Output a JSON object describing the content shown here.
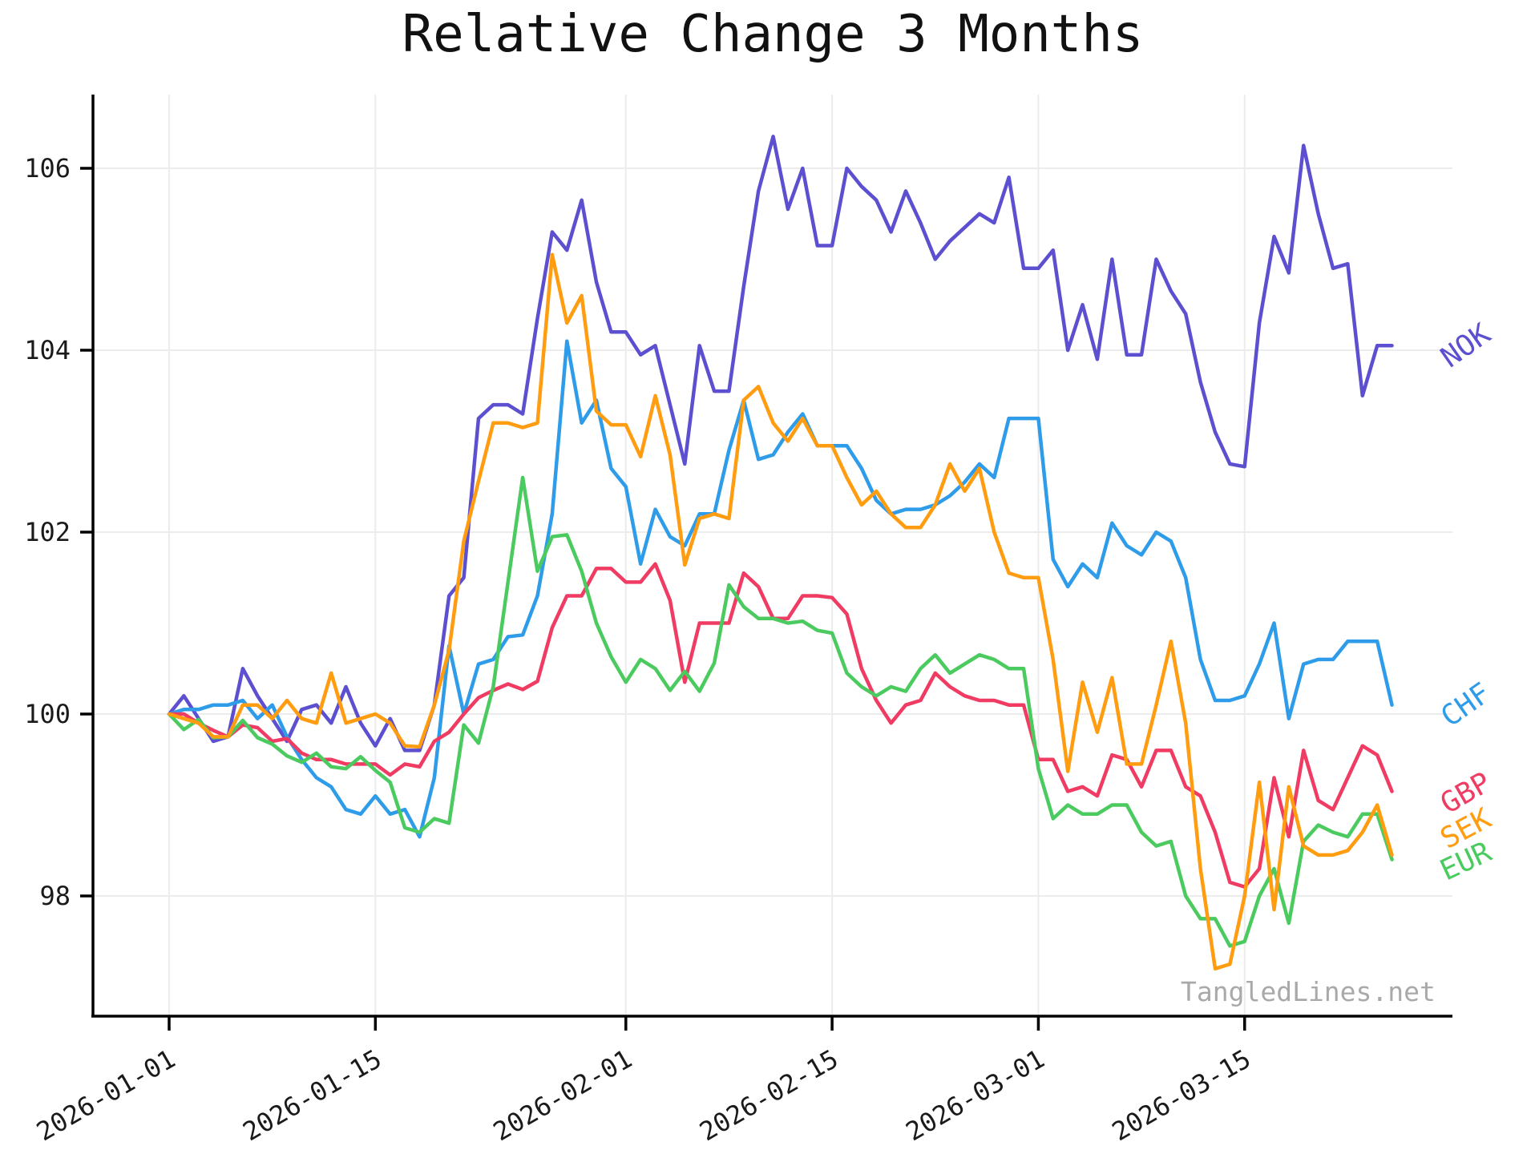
{
  "chart_data": {
    "type": "line",
    "title": "Relative Change 3 Months",
    "watermark": "TangledLines.net",
    "x_start_date": "2026-01-01",
    "x_step_days": 1,
    "grid": true,
    "legend_position": "right-edge-inline-labels",
    "y_axis": {
      "ticks": [
        98,
        100,
        102,
        104,
        106
      ],
      "ylim": [
        96.7,
        106.8
      ]
    },
    "x_axis": {
      "ticks": [
        {
          "day": 0,
          "label": "2026-01-01"
        },
        {
          "day": 14,
          "label": "2026-01-15"
        },
        {
          "day": 31,
          "label": "2026-02-01"
        },
        {
          "day": 45,
          "label": "2026-02-15"
        },
        {
          "day": 59,
          "label": "2026-03-01"
        },
        {
          "day": 73,
          "label": "2026-03-15"
        }
      ]
    },
    "series": [
      {
        "name": "NOK",
        "color": "#5c50d0",
        "values": [
          100.0,
          100.2,
          99.95,
          99.7,
          99.75,
          100.5,
          100.2,
          99.95,
          99.7,
          100.05,
          100.1,
          99.9,
          100.3,
          99.9,
          99.65,
          99.95,
          99.6,
          99.6,
          100.1,
          101.3,
          101.5,
          103.25,
          103.4,
          103.4,
          103.3,
          104.35,
          105.3,
          105.1,
          105.65,
          104.75,
          104.2,
          104.2,
          103.95,
          104.05,
          103.4,
          102.75,
          104.05,
          103.55,
          103.55,
          104.7,
          105.75,
          106.35,
          105.55,
          106.0,
          105.15,
          105.15,
          106.0,
          105.8,
          105.65,
          105.3,
          105.75,
          105.4,
          105.0,
          105.2,
          105.35,
          105.5,
          105.4,
          105.9,
          104.9,
          104.9,
          105.1,
          104.0,
          104.5,
          103.9,
          105.0,
          103.95,
          103.95,
          105.0,
          104.65,
          104.4,
          103.65,
          103.1,
          102.75,
          102.72,
          104.3,
          105.25,
          104.85,
          106.25,
          105.5,
          104.9,
          104.95,
          103.5,
          104.05,
          104.05
        ]
      },
      {
        "name": "CHF",
        "color": "#2e9ce9",
        "values": [
          100.0,
          100.05,
          100.05,
          100.1,
          100.1,
          100.15,
          99.95,
          100.1,
          99.75,
          99.5,
          99.3,
          99.2,
          98.95,
          98.9,
          99.1,
          98.9,
          98.95,
          98.65,
          99.3,
          100.75,
          100.0,
          100.55,
          100.6,
          100.85,
          100.87,
          101.3,
          102.2,
          104.1,
          103.2,
          103.45,
          102.7,
          102.5,
          101.65,
          102.25,
          101.95,
          101.85,
          102.2,
          102.2,
          102.9,
          103.45,
          102.8,
          102.85,
          103.1,
          103.3,
          102.95,
          102.95,
          102.95,
          102.7,
          102.35,
          102.2,
          102.25,
          102.25,
          102.3,
          102.4,
          102.55,
          102.75,
          102.6,
          103.25,
          103.25,
          103.25,
          101.7,
          101.4,
          101.65,
          101.5,
          102.1,
          101.85,
          101.75,
          102.0,
          101.9,
          101.5,
          100.6,
          100.15,
          100.15,
          100.2,
          100.55,
          101.0,
          99.95,
          100.55,
          100.6,
          100.6,
          100.8,
          100.8,
          100.8,
          100.1
        ]
      },
      {
        "name": "GBP",
        "color": "#f03b63",
        "values": [
          100.0,
          100.0,
          99.9,
          99.82,
          99.75,
          99.88,
          99.85,
          99.7,
          99.73,
          99.57,
          99.5,
          99.5,
          99.45,
          99.45,
          99.45,
          99.33,
          99.45,
          99.42,
          99.7,
          99.8,
          100.0,
          100.18,
          100.26,
          100.33,
          100.27,
          100.36,
          100.95,
          101.3,
          101.3,
          101.6,
          101.6,
          101.45,
          101.45,
          101.65,
          101.25,
          100.35,
          101.0,
          101.0,
          101.0,
          101.55,
          101.4,
          101.05,
          101.05,
          101.3,
          101.3,
          101.28,
          101.1,
          100.5,
          100.15,
          99.9,
          100.1,
          100.15,
          100.45,
          100.3,
          100.2,
          100.15,
          100.15,
          100.1,
          100.1,
          99.5,
          99.5,
          99.15,
          99.2,
          99.1,
          99.55,
          99.5,
          99.2,
          99.6,
          99.6,
          99.2,
          99.1,
          98.7,
          98.15,
          98.1,
          98.3,
          99.3,
          98.65,
          99.6,
          99.05,
          98.95,
          99.3,
          99.65,
          99.55,
          99.15
        ]
      },
      {
        "name": "EUR",
        "color": "#4bcb5f",
        "values": [
          100.0,
          99.83,
          99.94,
          99.74,
          99.75,
          99.93,
          99.74,
          99.67,
          99.54,
          99.47,
          99.57,
          99.42,
          99.4,
          99.53,
          99.38,
          99.25,
          98.75,
          98.7,
          98.85,
          98.8,
          99.88,
          99.68,
          100.3,
          101.45,
          102.6,
          101.57,
          101.95,
          101.97,
          101.57,
          101.0,
          100.63,
          100.35,
          100.6,
          100.5,
          100.26,
          100.47,
          100.25,
          100.56,
          101.42,
          101.18,
          101.05,
          101.05,
          101.0,
          101.02,
          100.92,
          100.89,
          100.45,
          100.3,
          100.2,
          100.3,
          100.25,
          100.5,
          100.65,
          100.45,
          100.55,
          100.65,
          100.6,
          100.5,
          100.5,
          99.4,
          98.85,
          99.0,
          98.9,
          98.9,
          99.0,
          99.0,
          98.7,
          98.55,
          98.6,
          98.0,
          97.75,
          97.75,
          97.45,
          97.5,
          98.0,
          98.3,
          97.7,
          98.6,
          98.78,
          98.7,
          98.65,
          98.9,
          98.9,
          98.4
        ]
      },
      {
        "name": "SEK",
        "color": "#ff9c10",
        "values": [
          100.0,
          99.95,
          99.9,
          99.75,
          99.75,
          100.1,
          100.1,
          99.95,
          100.15,
          99.95,
          99.9,
          100.45,
          99.9,
          99.95,
          100.0,
          99.9,
          99.65,
          99.64,
          100.1,
          100.7,
          101.9,
          102.56,
          103.2,
          103.2,
          103.15,
          103.2,
          105.05,
          104.3,
          104.6,
          103.33,
          103.18,
          103.18,
          102.83,
          103.5,
          102.85,
          101.64,
          102.15,
          102.2,
          102.15,
          103.45,
          103.6,
          103.2,
          103.0,
          103.25,
          102.95,
          102.95,
          102.6,
          102.3,
          102.45,
          102.2,
          102.05,
          102.05,
          102.3,
          102.75,
          102.45,
          102.7,
          102.0,
          101.55,
          101.5,
          101.5,
          100.6,
          99.37,
          100.35,
          99.8,
          100.4,
          99.45,
          99.45,
          100.1,
          100.8,
          99.9,
          98.3,
          97.2,
          97.25,
          98.0,
          99.25,
          97.85,
          99.2,
          98.55,
          98.45,
          98.45,
          98.5,
          98.7,
          99.0,
          98.45
        ]
      }
    ],
    "label_order_top_to_bottom": [
      "NOK",
      "CHF",
      "GBP",
      "SEK",
      "EUR"
    ]
  }
}
